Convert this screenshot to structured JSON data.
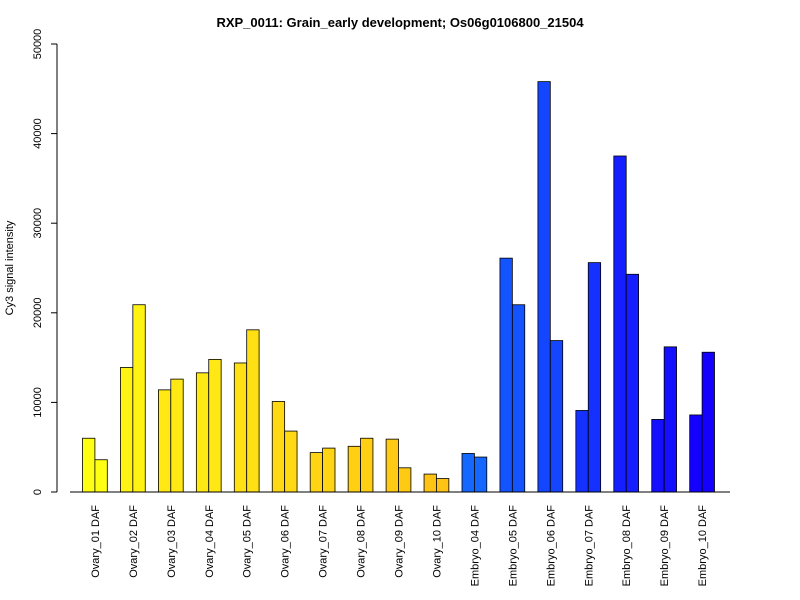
{
  "chart_data": {
    "type": "bar",
    "title": "RXP_0011: Grain_early development; Os06g0106800_21504",
    "xlabel": "",
    "ylabel": "Cy3 signal intensity",
    "ylim": [
      0,
      50000
    ],
    "yticks": [
      0,
      10000,
      20000,
      30000,
      40000,
      50000
    ],
    "grid": false,
    "legend": "none",
    "bars_per_group": 2,
    "categories": [
      "Ovary_01 DAF",
      "Ovary_02 DAF",
      "Ovary_03 DAF",
      "Ovary_04 DAF",
      "Ovary_05 DAF",
      "Ovary_06 DAF",
      "Ovary_07 DAF",
      "Ovary_08 DAF",
      "Ovary_09 DAF",
      "Ovary_10 DAF",
      "Embryo_04 DAF",
      "Embryo_05 DAF",
      "Embryo_06 DAF",
      "Embryo_07 DAF",
      "Embryo_08 DAF",
      "Embryo_09 DAF",
      "Embryo_10 DAF"
    ],
    "colors": [
      "#ffff14",
      "#fff314",
      "#ffe814",
      "#ffe814",
      "#ffe014",
      "#ffd914",
      "#ffd414",
      "#ffcf14",
      "#ffca14",
      "#ffc314",
      "#1467ff",
      "#1454ff",
      "#1445ff",
      "#1431ff",
      "#141eff",
      "#140fff",
      "#1400ff"
    ],
    "series": [
      {
        "values": [
          6000,
          13900,
          11400,
          13300,
          14400,
          10100,
          4400,
          5100,
          5900,
          2000,
          4300,
          26100,
          45800,
          9100,
          37500,
          8100,
          8600
        ]
      },
      {
        "values": [
          3600,
          20900,
          12600,
          14800,
          18100,
          6800,
          4900,
          6000,
          2700,
          1500,
          3900,
          20900,
          16900,
          25600,
          24300,
          16200,
          15600
        ]
      }
    ]
  }
}
